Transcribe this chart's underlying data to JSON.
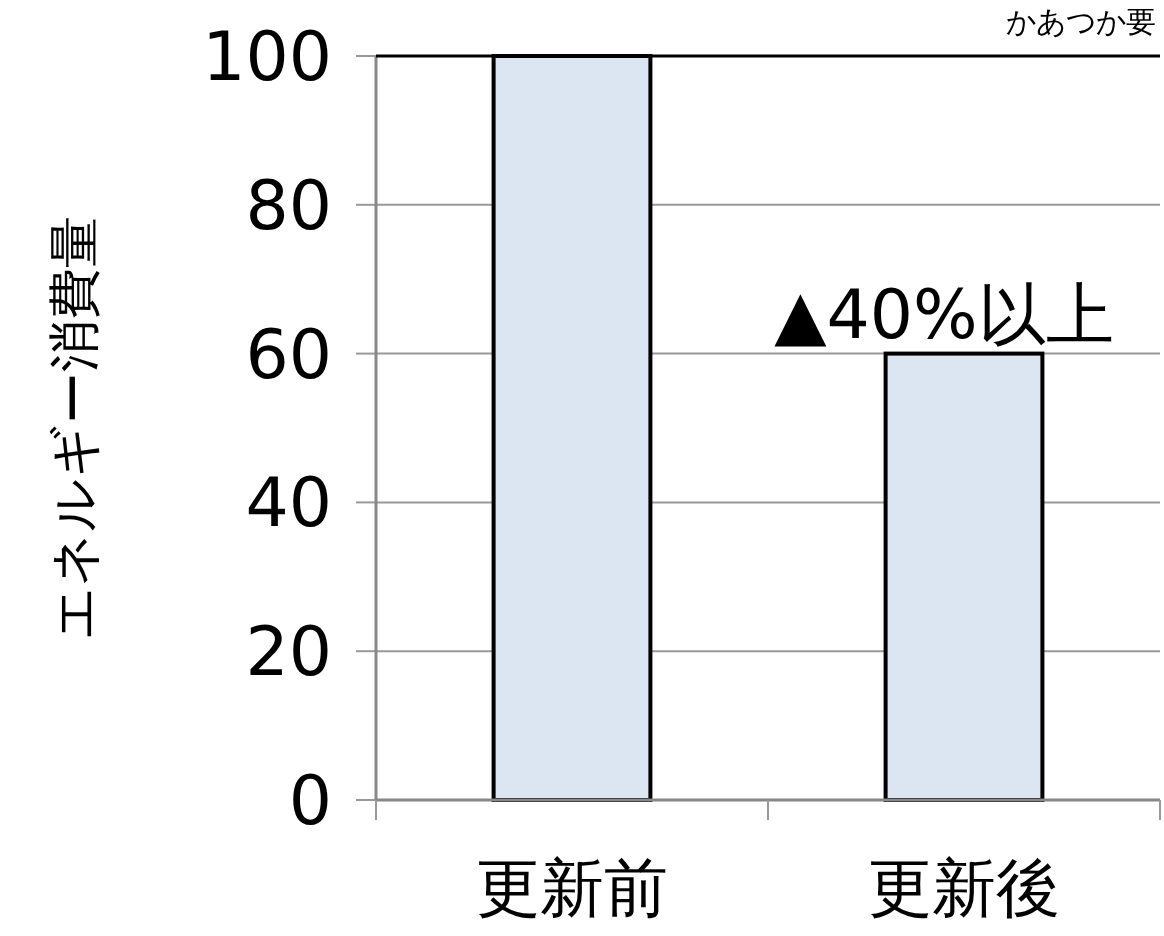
{
  "chart_data": {
    "type": "bar",
    "ylabel": "エネルギー消費量",
    "categories": [
      "更新前",
      "更新後"
    ],
    "values": [
      100,
      60
    ],
    "color": "#dce6f2",
    "ylim": [
      0,
      100
    ],
    "yticks": [
      0,
      20,
      40,
      60,
      80,
      100
    ],
    "grid": "y",
    "annotations": [
      {
        "text": "▲40%以上",
        "x": "更新後",
        "y": 60
      },
      "かあつか要"
    ]
  }
}
